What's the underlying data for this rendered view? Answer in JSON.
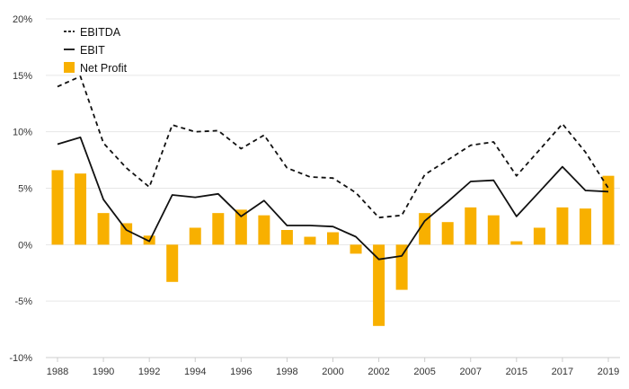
{
  "chart_data": {
    "type": "bar",
    "categories": [
      "1988",
      "1989",
      "1990",
      "1991",
      "1992",
      "1993",
      "1994",
      "1995",
      "1996",
      "1997",
      "1998",
      "1999",
      "2000",
      "2001",
      "2002",
      "2003",
      "2005",
      "2006",
      "2007",
      "2008",
      "2015",
      "2016",
      "2017",
      "2018",
      "2019"
    ],
    "x_tick_labels": [
      "1988",
      "1990",
      "1992",
      "1994",
      "1996",
      "1998",
      "2000",
      "2002",
      "2005",
      "2007",
      "2015",
      "2017",
      "2019"
    ],
    "y_tick_labels": [
      "20%",
      "15%",
      "10%",
      "5%",
      "0%",
      "-5%",
      "-10%"
    ],
    "y_ticks": [
      20,
      15,
      10,
      5,
      0,
      -5,
      -10
    ],
    "ylim": [
      -10,
      20
    ],
    "grid": true,
    "legend_position": "top-left",
    "series": [
      {
        "name": "EBITDA",
        "type": "line",
        "style": "dashed",
        "color": "#111111",
        "values": [
          14.0,
          14.9,
          9.0,
          6.8,
          5.1,
          10.6,
          10.0,
          10.1,
          8.5,
          9.7,
          6.8,
          6.0,
          5.9,
          4.6,
          2.4,
          2.6,
          6.2,
          7.5,
          8.8,
          9.1,
          6.1,
          8.4,
          10.7,
          8.2,
          5.0
        ]
      },
      {
        "name": "EBIT",
        "type": "line",
        "style": "solid",
        "color": "#111111",
        "values": [
          8.9,
          9.5,
          4.0,
          1.3,
          0.3,
          4.4,
          4.2,
          4.5,
          2.5,
          3.9,
          1.7,
          1.7,
          1.6,
          0.7,
          -1.3,
          -1.0,
          2.1,
          3.8,
          5.6,
          5.7,
          2.5,
          4.7,
          6.9,
          4.8,
          4.7
        ]
      },
      {
        "name": "Net Profit",
        "type": "bar",
        "color": "#f8b000",
        "values": [
          6.6,
          6.3,
          2.8,
          1.9,
          0.8,
          -3.3,
          1.5,
          2.8,
          3.1,
          2.6,
          1.3,
          0.7,
          1.1,
          -0.8,
          -7.2,
          -4.0,
          2.8,
          2.0,
          3.3,
          2.6,
          0.3,
          1.5,
          3.3,
          3.2,
          6.1
        ]
      }
    ]
  }
}
